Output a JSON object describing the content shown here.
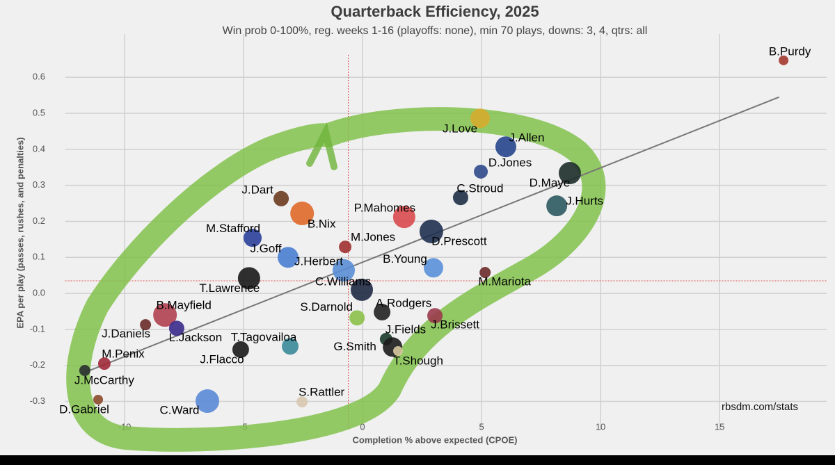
{
  "chart_data": {
    "type": "scatter",
    "title": "Quarterback Efficiency, 2025",
    "subtitle": "Win prob 0-100%, reg. weeks 1-16 (playoffs: none), min 70 plays, downs: 3, 4, qtrs: all",
    "x_label": "Completion % above expected (CPOE)",
    "y_label": "EPA per play (passes, rushes, and penalties)",
    "source": "rbsdm.com/stats",
    "xlim": [
      -12.5,
      19.5
    ],
    "ylim": [
      -0.38,
      0.72
    ],
    "xticks": [
      -10,
      -5,
      0,
      5,
      10,
      15
    ],
    "yticks": [
      -0.3,
      -0.2,
      -0.1,
      {
        "value": 0,
        "label": "0.0"
      },
      0.1,
      0.2,
      0.3,
      0.4,
      0.5,
      0.6
    ],
    "grid": true,
    "vline": -0.6,
    "hline": 0.035,
    "trendline": {
      "x": [
        -11.7,
        17.5
      ],
      "y": [
        -0.22,
        0.545
      ]
    },
    "labels": [
      "B.Purdy",
      "J.Love",
      "J.Allen",
      "D.Jones",
      "D.Maye",
      "C.Stroud",
      "J.Hurts",
      "J.Dart",
      "B.Nix",
      "P.Mahomes",
      "D.Prescott",
      "M.Stafford",
      "M.Jones",
      "J.Goff",
      "J.Herbert",
      "B.Young",
      "M.Mariota",
      "T.Lawrence",
      "C.Williams",
      "S.Darnold",
      "A.Rodgers",
      "J.Brissett",
      "B.Mayfield",
      "J.Daniels",
      "L.Jackson",
      "J.Fields",
      "T.Tagovailoa",
      "G.Smith",
      "T.Shough",
      "J.Flacco",
      "M.Penix",
      "J.McCarthy",
      "D.Gabriel",
      "C.Ward",
      "S.Rattler"
    ],
    "x": [
      17.69,
      4.94,
      6.02,
      4.97,
      8.71,
      4.12,
      8.16,
      -3.42,
      -2.54,
      1.75,
      2.89,
      -4.62,
      -0.73,
      -3.13,
      -0.79,
      2.98,
      5.15,
      -4.77,
      -0.03,
      -0.23,
      0.82,
      3.04,
      -8.3,
      -9.12,
      -7.81,
      0.99,
      -3.04,
      1.26,
      1.49,
      -5.12,
      -10.85,
      -11.67,
      -11.11,
      -6.52,
      -2.54
    ],
    "y": [
      0.647,
      0.486,
      0.407,
      0.338,
      0.334,
      0.266,
      0.243,
      0.263,
      0.222,
      0.212,
      0.172,
      0.154,
      0.129,
      0.1,
      0.064,
      0.071,
      0.058,
      0.042,
      0.01,
      -0.068,
      -0.052,
      -0.062,
      -0.06,
      -0.087,
      -0.097,
      -0.127,
      -0.147,
      -0.149,
      -0.16,
      -0.156,
      -0.195,
      -0.214,
      -0.295,
      -0.299,
      -0.301
    ],
    "sizes": [
      7,
      14,
      15,
      10,
      16,
      11,
      15,
      11,
      17,
      16,
      17,
      13,
      9,
      15,
      16,
      14,
      8,
      16,
      16,
      11,
      12,
      11,
      17,
      8,
      11,
      9,
      12,
      14,
      7,
      12,
      9,
      8,
      7,
      17,
      8
    ],
    "colors": [
      "#a3372e",
      "#d6ac2e",
      "#27458d",
      "#2f4a8a",
      "#1d2d29",
      "#1e2f45",
      "#2b5a60",
      "#6b3a1f",
      "#e0692a",
      "#d84a4e",
      "#1f3050",
      "#2a3f9a",
      "#a03030",
      "#4a7ed0",
      "#5a8ed6",
      "#5a90d8",
      "#6b2a2a",
      "#1a1a1a",
      "#1e2a44",
      "#8cc04a",
      "#222222",
      "#9a3a4a",
      "#b04050",
      "#6a2a2a",
      "#3a2a8a",
      "#1a3a2a",
      "#3a8a99",
      "#1c1c1c",
      "#d8c8a0",
      "#1a1a1a",
      "#a02a3a",
      "#2a3030",
      "#8a4a2a",
      "#5a8ad6",
      "#d8c8b0"
    ]
  }
}
